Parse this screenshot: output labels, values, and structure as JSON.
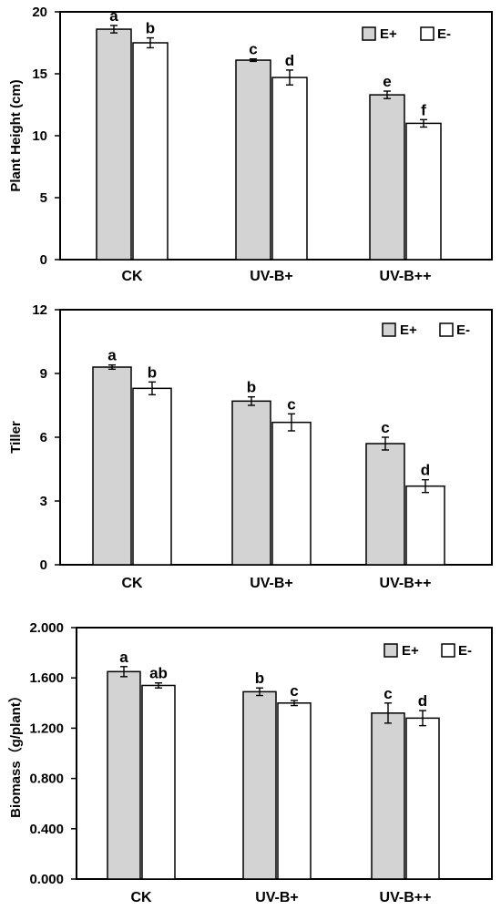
{
  "colors": {
    "e_plus": "#d3d3d3",
    "e_minus": "#ffffff",
    "stroke": "#000000"
  },
  "chart_data": [
    {
      "type": "bar",
      "ylabel": "Plant Height (cm)",
      "categories": [
        "CK",
        "UV-B+",
        "UV-B++"
      ],
      "ylim": [
        0,
        20
      ],
      "yticks": [
        0,
        5,
        10,
        15,
        20
      ],
      "yticklabels": [
        "0",
        "5",
        "10",
        "15",
        "20"
      ],
      "legend": "top-right",
      "series": [
        {
          "name": "E+",
          "values": [
            18.6,
            16.1,
            13.3
          ],
          "errors": [
            0.3,
            0.1,
            0.3
          ],
          "labels": [
            "a",
            "c",
            "e"
          ]
        },
        {
          "name": "E-",
          "values": [
            17.5,
            14.7,
            11.0
          ],
          "errors": [
            0.4,
            0.6,
            0.3
          ],
          "labels": [
            "b",
            "d",
            "f"
          ]
        }
      ]
    },
    {
      "type": "bar",
      "ylabel": "Tiller",
      "categories": [
        "CK",
        "UV-B+",
        "UV-B++"
      ],
      "ylim": [
        0,
        12
      ],
      "yticks": [
        0,
        3,
        6,
        9,
        12
      ],
      "yticklabels": [
        "0",
        "3",
        "6",
        "9",
        "12"
      ],
      "legend": "top-right",
      "series": [
        {
          "name": "E+",
          "values": [
            9.3,
            7.7,
            5.7
          ],
          "errors": [
            0.1,
            0.2,
            0.3
          ],
          "labels": [
            "a",
            "b",
            "c"
          ]
        },
        {
          "name": "E-",
          "values": [
            8.3,
            6.7,
            3.7
          ],
          "errors": [
            0.3,
            0.4,
            0.3
          ],
          "labels": [
            "b",
            "c",
            "d"
          ]
        }
      ]
    },
    {
      "type": "bar",
      "ylabel": "Biomass（g/plant）",
      "categories": [
        "CK",
        "UV-B+",
        "UV-B++"
      ],
      "ylim": [
        0,
        2.0
      ],
      "yticks": [
        0,
        0.4,
        0.8,
        1.2,
        1.6,
        2.0
      ],
      "yticklabels": [
        "0.000",
        "0.400",
        "0.800",
        "1.200",
        "1.600",
        "2.000"
      ],
      "legend": "top-right",
      "series": [
        {
          "name": "E+",
          "values": [
            1.65,
            1.49,
            1.32
          ],
          "errors": [
            0.04,
            0.03,
            0.08
          ],
          "labels": [
            "a",
            "b",
            "c"
          ]
        },
        {
          "name": "E-",
          "values": [
            1.54,
            1.4,
            1.28
          ],
          "errors": [
            0.02,
            0.02,
            0.06
          ],
          "labels": [
            "ab",
            "c",
            "d"
          ]
        }
      ]
    }
  ]
}
